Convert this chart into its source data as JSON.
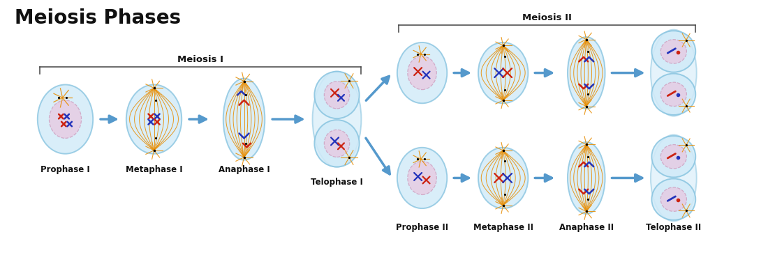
{
  "title": "Meiosis Phases",
  "title_fontsize": 20,
  "title_fontweight": "bold",
  "background_color": "#ffffff",
  "cell_fill": "#d0eaf8",
  "cell_edge": "#88c4e0",
  "cell_alpha": 0.75,
  "nucleus_fill": "#e8c8e0",
  "nucleus_edge": "#cc99bb",
  "spindle_color": "#e8900a",
  "arrow_color": "#5599cc",
  "bracket_color": "#444444",
  "label_color": "#111111",
  "chrom_red": "#cc2211",
  "chrom_blue": "#2233bb",
  "meiosis1_label": "Meiosis I",
  "meiosis2_label": "Meiosis II",
  "phase_labels_1": [
    "Prophase I",
    "Metaphase I",
    "Anaphase I",
    "Telophase I"
  ],
  "phase_labels_2": [
    "Prophase II",
    "Metaphase II",
    "Anaphase II",
    "Telophase II"
  ],
  "label_fontsize": 8.5,
  "bracket_fontsize": 9.5
}
